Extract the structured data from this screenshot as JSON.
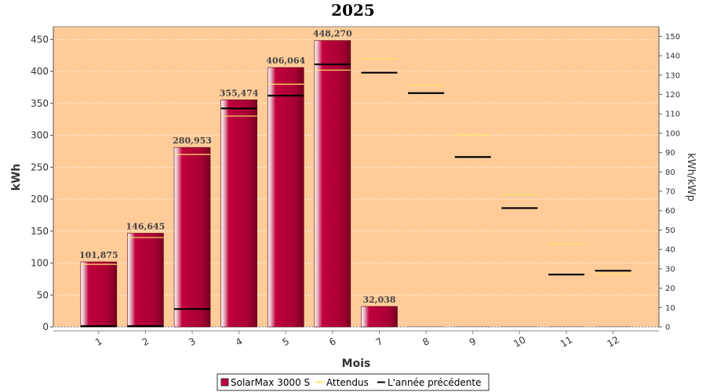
{
  "chart_data": {
    "type": "bar",
    "title": "2025",
    "xlabel": "Mois",
    "ylabel": "kWh",
    "y2label": "kWh/kWp",
    "ylim": [
      0,
      470
    ],
    "y2lim": [
      0,
      155
    ],
    "yticks": [
      0,
      50,
      100,
      150,
      200,
      250,
      300,
      350,
      400,
      450
    ],
    "y2ticks": [
      0,
      10,
      20,
      30,
      40,
      50,
      60,
      70,
      80,
      90,
      100,
      110,
      120,
      130,
      140,
      150
    ],
    "categories": [
      "1",
      "2",
      "3",
      "4",
      "5",
      "6",
      "7",
      "8",
      "9",
      "10",
      "11",
      "12"
    ],
    "grid": true,
    "legend_position": "bottom",
    "series": [
      {
        "name": "SolarMax 3000 S",
        "kind": "bar",
        "color": "#c0003c",
        "values": [
          101.875,
          146.645,
          280.953,
          355.474,
          406.064,
          448.27,
          32.038,
          0,
          0,
          0,
          0,
          0
        ],
        "labels": [
          "101,875",
          "146,645",
          "280,953",
          "355,474",
          "406,064",
          "448,270",
          "32,038",
          "",
          "",
          "",
          "",
          ""
        ]
      },
      {
        "name": "Attendus",
        "kind": "marker",
        "color": "#ffe66a",
        "values": [
          98,
          140,
          270,
          330,
          380,
          402,
          420,
          378,
          301,
          207,
          130,
          83
        ]
      },
      {
        "name": "L'année précédente",
        "kind": "marker",
        "color": "#000000",
        "values": [
          0,
          0,
          28,
          342,
          362,
          411,
          398,
          366,
          266,
          186,
          82,
          88
        ]
      }
    ],
    "plot_background": "#ffcc99"
  }
}
